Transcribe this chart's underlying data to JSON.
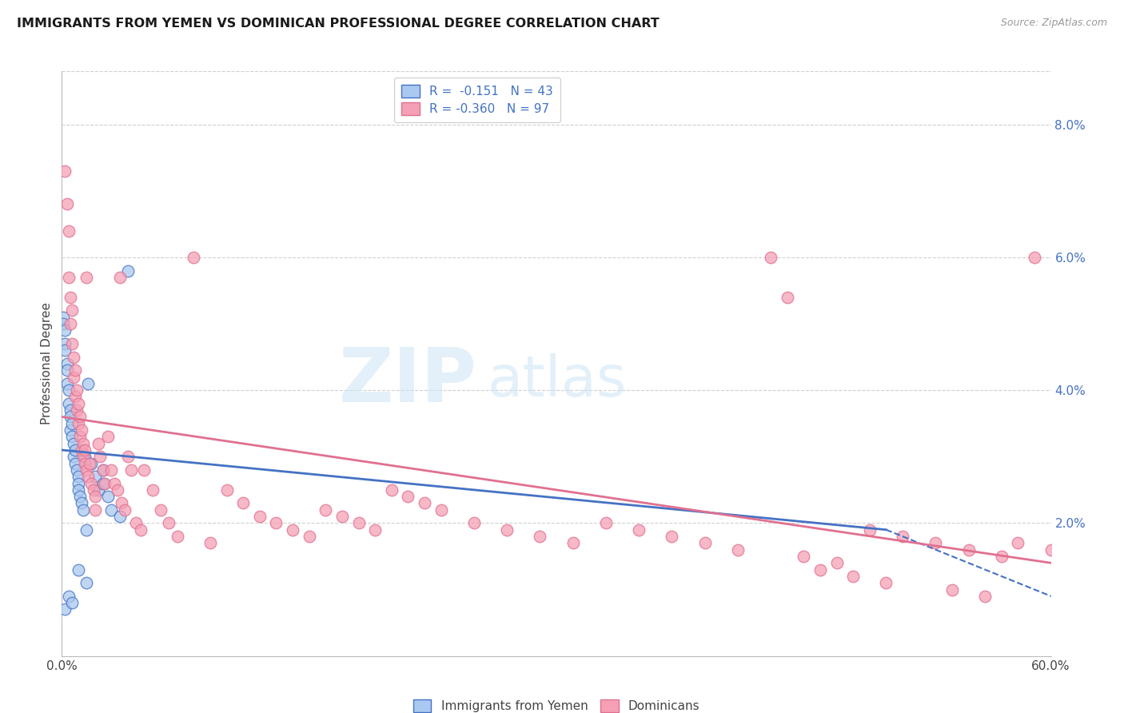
{
  "title": "IMMIGRANTS FROM YEMEN VS DOMINICAN PROFESSIONAL DEGREE CORRELATION CHART",
  "source": "Source: ZipAtlas.com",
  "ylabel": "Professional Degree",
  "right_yticks": [
    "8.0%",
    "6.0%",
    "4.0%",
    "2.0%"
  ],
  "right_ytick_vals": [
    0.08,
    0.06,
    0.04,
    0.02
  ],
  "x_min": 0.0,
  "x_max": 0.6,
  "y_min": 0.0,
  "y_max": 0.088,
  "blue_color": "#aac9f0",
  "pink_color": "#f5a0b5",
  "blue_edge_color": "#4472c4",
  "pink_edge_color": "#e07090",
  "blue_scatter": [
    [
      0.001,
      0.051
    ],
    [
      0.001,
      0.05
    ],
    [
      0.002,
      0.049
    ],
    [
      0.002,
      0.047
    ],
    [
      0.002,
      0.046
    ],
    [
      0.003,
      0.044
    ],
    [
      0.003,
      0.043
    ],
    [
      0.003,
      0.041
    ],
    [
      0.004,
      0.04
    ],
    [
      0.004,
      0.038
    ],
    [
      0.005,
      0.037
    ],
    [
      0.005,
      0.036
    ],
    [
      0.005,
      0.034
    ],
    [
      0.006,
      0.035
    ],
    [
      0.006,
      0.033
    ],
    [
      0.007,
      0.032
    ],
    [
      0.007,
      0.03
    ],
    [
      0.008,
      0.031
    ],
    [
      0.008,
      0.029
    ],
    [
      0.009,
      0.028
    ],
    [
      0.01,
      0.027
    ],
    [
      0.01,
      0.026
    ],
    [
      0.01,
      0.025
    ],
    [
      0.011,
      0.024
    ],
    [
      0.012,
      0.023
    ],
    [
      0.013,
      0.022
    ],
    [
      0.014,
      0.03
    ],
    [
      0.015,
      0.019
    ],
    [
      0.016,
      0.041
    ],
    [
      0.018,
      0.029
    ],
    [
      0.02,
      0.027
    ],
    [
      0.022,
      0.025
    ],
    [
      0.025,
      0.028
    ],
    [
      0.025,
      0.026
    ],
    [
      0.028,
      0.024
    ],
    [
      0.03,
      0.022
    ],
    [
      0.035,
      0.021
    ],
    [
      0.04,
      0.058
    ],
    [
      0.002,
      0.007
    ],
    [
      0.01,
      0.013
    ],
    [
      0.015,
      0.011
    ],
    [
      0.004,
      0.009
    ],
    [
      0.006,
      0.008
    ]
  ],
  "pink_scatter": [
    [
      0.002,
      0.073
    ],
    [
      0.003,
      0.068
    ],
    [
      0.004,
      0.064
    ],
    [
      0.004,
      0.057
    ],
    [
      0.005,
      0.054
    ],
    [
      0.005,
      0.05
    ],
    [
      0.006,
      0.052
    ],
    [
      0.006,
      0.047
    ],
    [
      0.007,
      0.045
    ],
    [
      0.007,
      0.042
    ],
    [
      0.008,
      0.043
    ],
    [
      0.008,
      0.039
    ],
    [
      0.009,
      0.04
    ],
    [
      0.009,
      0.037
    ],
    [
      0.01,
      0.038
    ],
    [
      0.01,
      0.035
    ],
    [
      0.011,
      0.036
    ],
    [
      0.011,
      0.033
    ],
    [
      0.012,
      0.034
    ],
    [
      0.012,
      0.031
    ],
    [
      0.013,
      0.032
    ],
    [
      0.013,
      0.03
    ],
    [
      0.014,
      0.031
    ],
    [
      0.014,
      0.029
    ],
    [
      0.015,
      0.057
    ],
    [
      0.015,
      0.028
    ],
    [
      0.016,
      0.027
    ],
    [
      0.017,
      0.029
    ],
    [
      0.018,
      0.026
    ],
    [
      0.019,
      0.025
    ],
    [
      0.02,
      0.024
    ],
    [
      0.02,
      0.022
    ],
    [
      0.022,
      0.032
    ],
    [
      0.023,
      0.03
    ],
    [
      0.025,
      0.028
    ],
    [
      0.026,
      0.026
    ],
    [
      0.028,
      0.033
    ],
    [
      0.03,
      0.028
    ],
    [
      0.032,
      0.026
    ],
    [
      0.034,
      0.025
    ],
    [
      0.035,
      0.057
    ],
    [
      0.036,
      0.023
    ],
    [
      0.038,
      0.022
    ],
    [
      0.04,
      0.03
    ],
    [
      0.042,
      0.028
    ],
    [
      0.045,
      0.02
    ],
    [
      0.048,
      0.019
    ],
    [
      0.05,
      0.028
    ],
    [
      0.055,
      0.025
    ],
    [
      0.06,
      0.022
    ],
    [
      0.065,
      0.02
    ],
    [
      0.07,
      0.018
    ],
    [
      0.08,
      0.06
    ],
    [
      0.09,
      0.017
    ],
    [
      0.1,
      0.025
    ],
    [
      0.11,
      0.023
    ],
    [
      0.12,
      0.021
    ],
    [
      0.13,
      0.02
    ],
    [
      0.14,
      0.019
    ],
    [
      0.15,
      0.018
    ],
    [
      0.16,
      0.022
    ],
    [
      0.17,
      0.021
    ],
    [
      0.18,
      0.02
    ],
    [
      0.19,
      0.019
    ],
    [
      0.2,
      0.025
    ],
    [
      0.21,
      0.024
    ],
    [
      0.22,
      0.023
    ],
    [
      0.23,
      0.022
    ],
    [
      0.25,
      0.02
    ],
    [
      0.27,
      0.019
    ],
    [
      0.29,
      0.018
    ],
    [
      0.31,
      0.017
    ],
    [
      0.33,
      0.02
    ],
    [
      0.35,
      0.019
    ],
    [
      0.37,
      0.018
    ],
    [
      0.39,
      0.017
    ],
    [
      0.41,
      0.016
    ],
    [
      0.43,
      0.06
    ],
    [
      0.45,
      0.015
    ],
    [
      0.47,
      0.014
    ],
    [
      0.49,
      0.019
    ],
    [
      0.51,
      0.018
    ],
    [
      0.53,
      0.017
    ],
    [
      0.55,
      0.016
    ],
    [
      0.57,
      0.015
    ],
    [
      0.59,
      0.06
    ],
    [
      0.44,
      0.054
    ],
    [
      0.46,
      0.013
    ],
    [
      0.48,
      0.012
    ],
    [
      0.5,
      0.011
    ],
    [
      0.54,
      0.01
    ],
    [
      0.56,
      0.009
    ],
    [
      0.58,
      0.017
    ],
    [
      0.6,
      0.016
    ]
  ],
  "blue_trend": [
    0.0,
    0.031,
    0.5,
    0.019
  ],
  "blue_dash": [
    0.5,
    0.019,
    0.6,
    0.009
  ],
  "pink_trend": [
    0.0,
    0.036,
    0.6,
    0.014
  ],
  "watermark_line1": "ZIP",
  "watermark_line2": "atlas",
  "grid_color": "#d0d0d0",
  "spine_color": "#bbbbbb"
}
